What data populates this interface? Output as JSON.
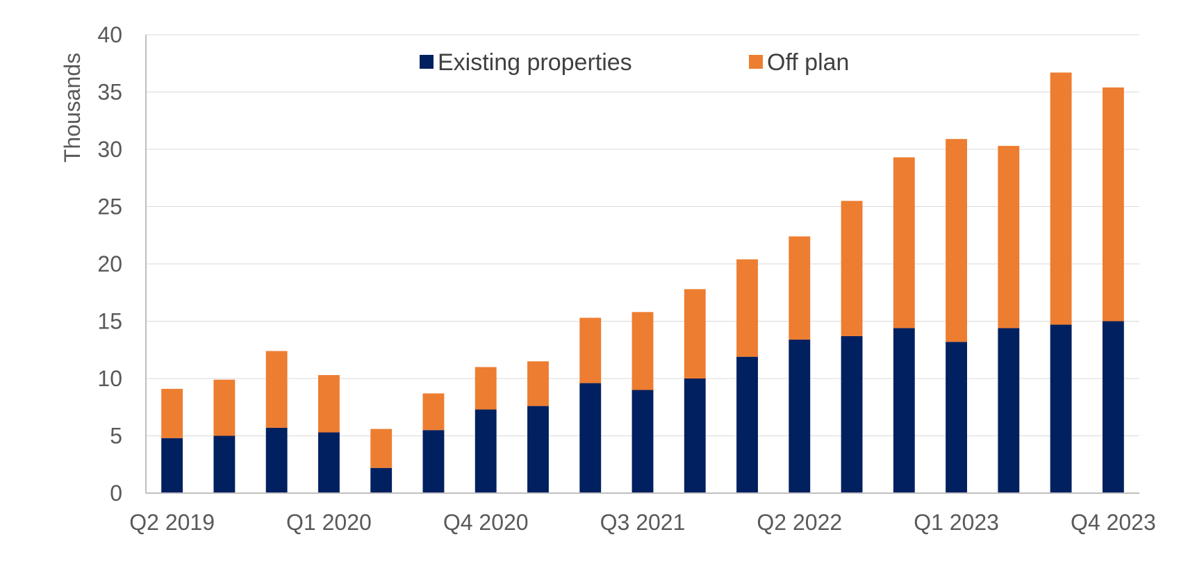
{
  "chart_data": {
    "type": "bar",
    "stacked": true,
    "title": "",
    "xlabel": "",
    "ylabel": "Thousands",
    "ylim": [
      0,
      40
    ],
    "yticks": [
      0,
      5,
      10,
      15,
      20,
      25,
      30,
      35,
      40
    ],
    "grid": true,
    "legend_position": "top-center",
    "categories": [
      "Q2 2019",
      "Q3 2019",
      "Q4 2019",
      "Q1 2020",
      "Q2 2020",
      "Q3 2020",
      "Q4 2020",
      "Q1 2021",
      "Q2 2021",
      "Q3 2021",
      "Q4 2021",
      "Q1 2022",
      "Q2 2022",
      "Q3 2022",
      "Q4 2022",
      "Q1 2023",
      "Q2 2023",
      "Q3 2023",
      "Q4 2023"
    ],
    "x_tick_labels": [
      "Q2 2019",
      "Q1 2020",
      "Q4 2020",
      "Q3 2021",
      "Q2 2022",
      "Q1 2023",
      "Q4 2023"
    ],
    "series": [
      {
        "name": "Existing properties",
        "color": "#002060",
        "values": [
          4.8,
          5.0,
          5.7,
          5.3,
          2.2,
          5.5,
          7.3,
          7.6,
          9.6,
          9.0,
          10.0,
          11.9,
          13.4,
          13.7,
          14.4,
          13.2,
          14.4,
          14.7,
          15.0
        ]
      },
      {
        "name": "Off plan",
        "color": "#ED7D31",
        "values": [
          4.3,
          4.9,
          6.7,
          5.0,
          3.4,
          3.2,
          3.7,
          3.9,
          5.7,
          6.8,
          7.8,
          8.5,
          9.0,
          11.8,
          14.9,
          17.7,
          15.9,
          22.0,
          20.4
        ]
      }
    ]
  }
}
